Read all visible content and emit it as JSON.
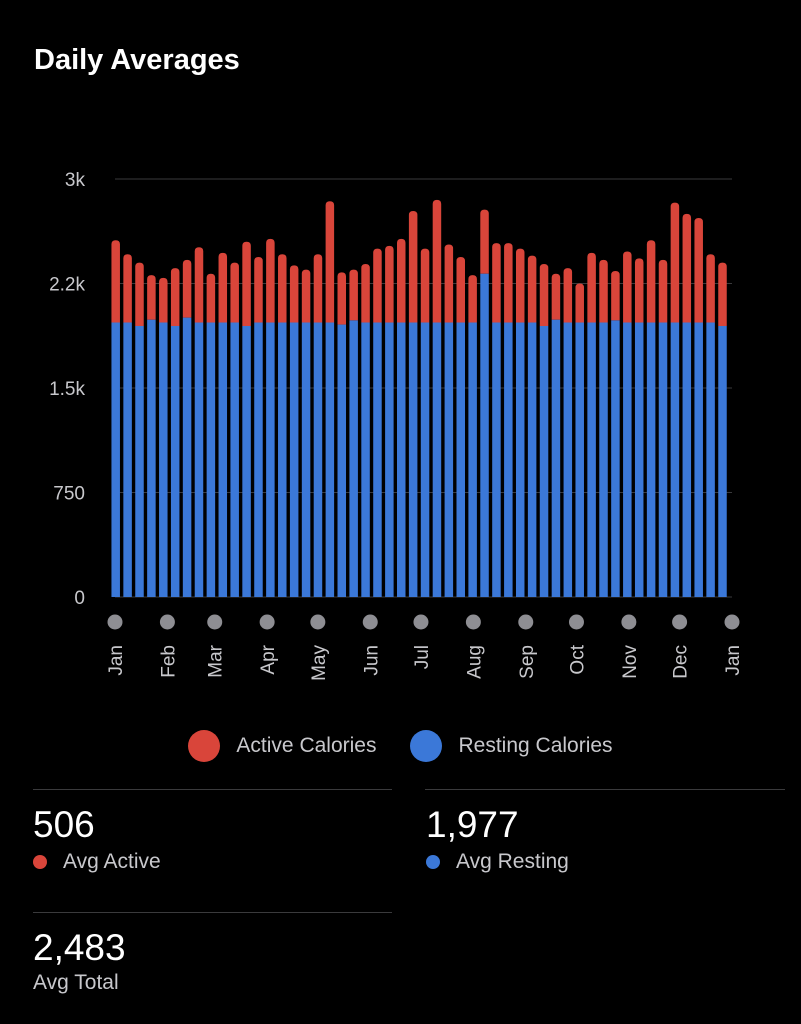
{
  "title": "Daily Averages",
  "chart_data": {
    "type": "bar",
    "stacked": true,
    "title": "Daily Averages",
    "y_ticks": [
      {
        "value": 0,
        "label": "0"
      },
      {
        "value": 750,
        "label": "750"
      },
      {
        "value": 1500,
        "label": "1.5k"
      },
      {
        "value": 2250,
        "label": "2.2k"
      },
      {
        "value": 3000,
        "label": "3k"
      }
    ],
    "ylim": [
      0,
      3000
    ],
    "x_ticks": [
      {
        "label": "Jan",
        "day": 0
      },
      {
        "label": "Feb",
        "day": 31
      },
      {
        "label": "Mar",
        "day": 59
      },
      {
        "label": "Apr",
        "day": 90
      },
      {
        "label": "May",
        "day": 120
      },
      {
        "label": "Jun",
        "day": 151
      },
      {
        "label": "Jul",
        "day": 181
      },
      {
        "label": "Aug",
        "day": 212
      },
      {
        "label": "Sep",
        "day": 243
      },
      {
        "label": "Oct",
        "day": 273
      },
      {
        "label": "Nov",
        "day": 304
      },
      {
        "label": "Dec",
        "day": 334
      },
      {
        "label": "Jan",
        "day": 365
      }
    ],
    "grid": true,
    "legend_position": "bottom",
    "series": [
      {
        "name": "Resting Calories",
        "color": "#3b78d8",
        "values": [
          1970,
          1970,
          1945,
          1990,
          1970,
          1945,
          2005,
          1970,
          1970,
          1970,
          1970,
          1945,
          1970,
          1970,
          1970,
          1970,
          1970,
          1970,
          1970,
          1955,
          1985,
          1970,
          1970,
          1970,
          1970,
          1970,
          1970,
          1970,
          1970,
          1970,
          1970,
          2320,
          1970,
          1970,
          1970,
          1970,
          1945,
          1990,
          1970,
          1970,
          1970,
          1970,
          1985,
          1970,
          1970,
          1970,
          1970,
          1970,
          1970,
          1970,
          1970,
          1945
        ]
      },
      {
        "name": "Active Calories",
        "color": "#d9453a",
        "totals": [
          2560,
          2460,
          2400,
          2310,
          2290,
          2360,
          2420,
          2510,
          2320,
          2470,
          2400,
          2550,
          2440,
          2570,
          2460,
          2380,
          2350,
          2460,
          2840,
          2330,
          2350,
          2390,
          2500,
          2520,
          2570,
          2770,
          2500,
          2850,
          2530,
          2440,
          2310,
          2780,
          2540,
          2540,
          2500,
          2450,
          2390,
          2320,
          2360,
          2250,
          2470,
          2420,
          2340,
          2480,
          2430,
          2560,
          2420,
          2830,
          2750,
          2720,
          2460,
          2400
        ]
      }
    ]
  },
  "legend": [
    {
      "label": "Active Calories",
      "color": "#d9453a"
    },
    {
      "label": "Resting Calories",
      "color": "#3b78d8"
    }
  ],
  "stats": {
    "avg_active": {
      "value": "506",
      "label": "Avg Active"
    },
    "avg_resting": {
      "value": "1,977",
      "label": "Avg Resting"
    },
    "avg_total": {
      "value": "2,483",
      "label": "Avg Total"
    }
  }
}
